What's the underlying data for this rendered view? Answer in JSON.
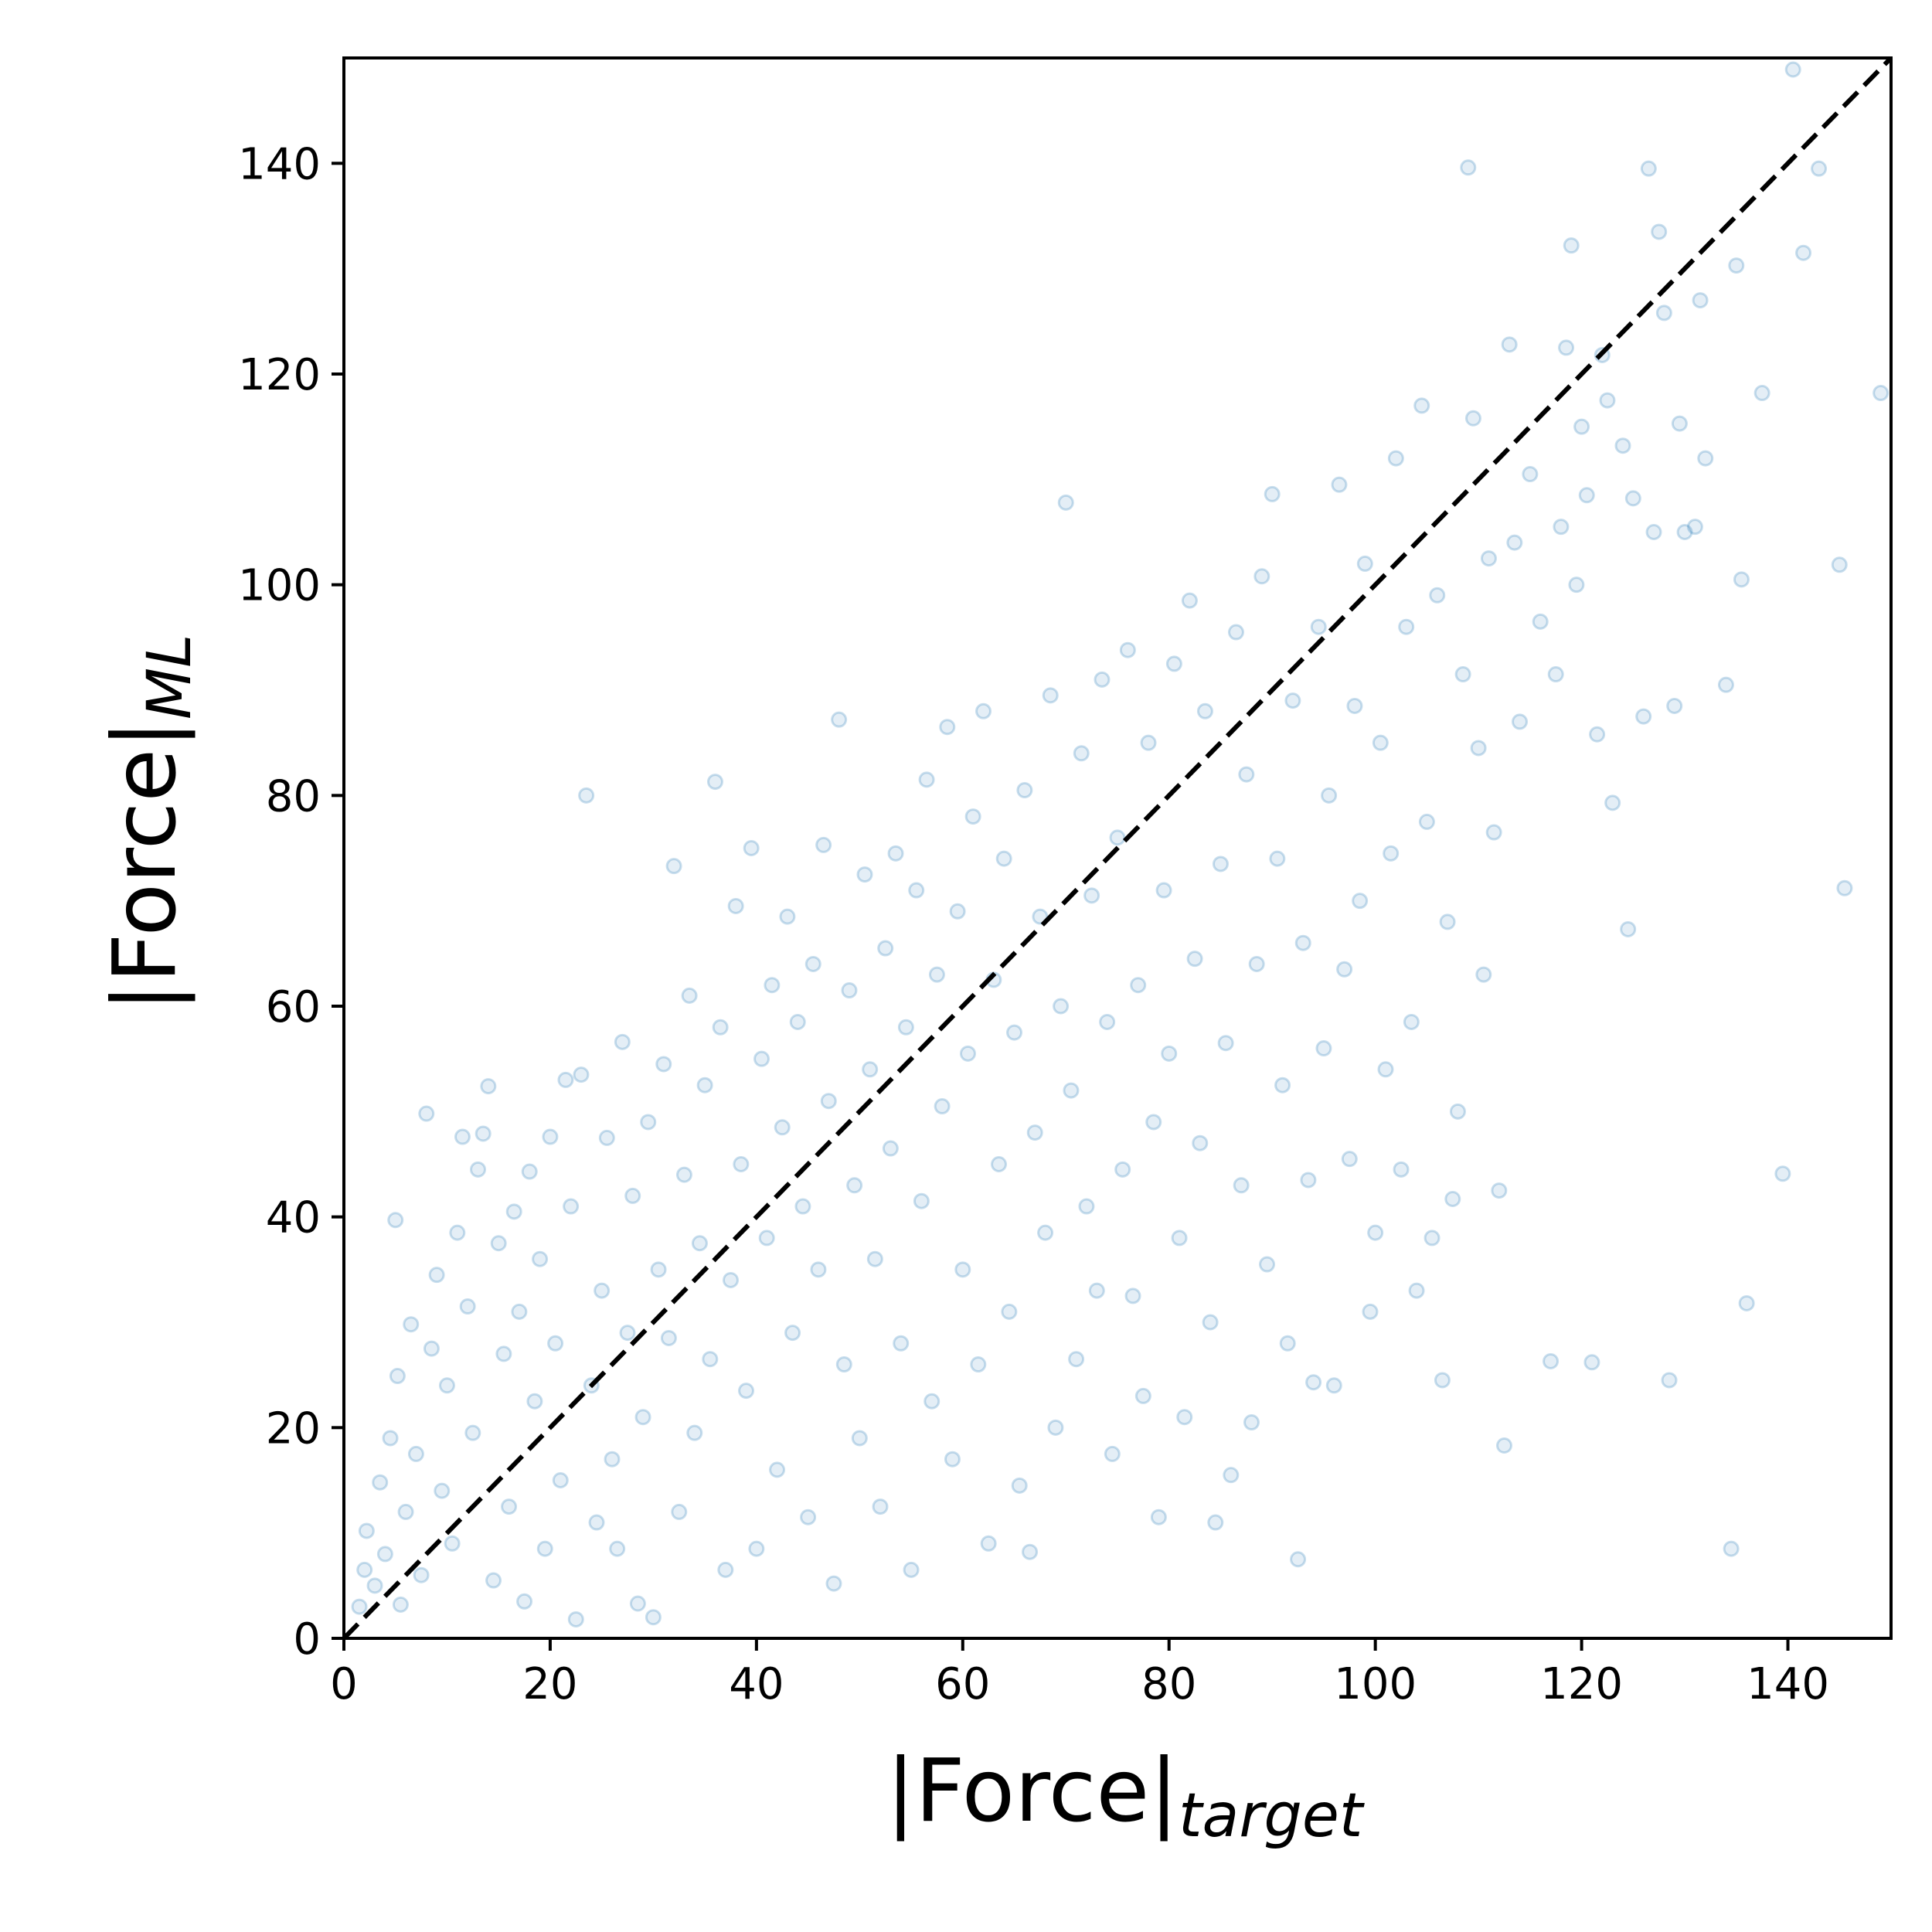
{
  "chart_data": {
    "type": "scatter",
    "title": "",
    "xlabel": {
      "main": "|Force|",
      "subscript": "target"
    },
    "ylabel": {
      "main": "|Force|",
      "subscript": "ML"
    },
    "xlim": [
      0,
      150
    ],
    "ylim": [
      0,
      150
    ],
    "xticks": [
      0,
      20,
      40,
      60,
      80,
      100,
      120,
      140
    ],
    "yticks": [
      0,
      20,
      40,
      60,
      80,
      100,
      120,
      140
    ],
    "xtick_labels": [
      "0",
      "20",
      "40",
      "60",
      "80",
      "100",
      "120",
      "140"
    ],
    "ytick_labels": [
      "0",
      "20",
      "40",
      "60",
      "80",
      "100",
      "120",
      "140"
    ],
    "grid": false,
    "legend": "none",
    "reference_line": {
      "style": "dashed",
      "color": "#000000",
      "from": [
        0,
        0
      ],
      "to": [
        150,
        150
      ]
    },
    "series": [
      {
        "marker": "hollow-circle",
        "color": "#1f77b4",
        "alpha": 0.15,
        "points": [
          [
            1.5,
            3.0
          ],
          [
            2.0,
            6.5
          ],
          [
            2.2,
            10.2
          ],
          [
            3.0,
            5.0
          ],
          [
            3.5,
            14.8
          ],
          [
            4.0,
            8.0
          ],
          [
            4.5,
            19.0
          ],
          [
            5.0,
            39.7
          ],
          [
            5.2,
            24.9
          ],
          [
            5.5,
            3.2
          ],
          [
            6.0,
            12.0
          ],
          [
            6.5,
            29.8
          ],
          [
            7.0,
            17.5
          ],
          [
            7.5,
            6.0
          ],
          [
            8.0,
            49.8
          ],
          [
            8.5,
            27.5
          ],
          [
            9.0,
            34.5
          ],
          [
            9.5,
            14.0
          ],
          [
            10.0,
            24.0
          ],
          [
            10.5,
            9.0
          ],
          [
            11.0,
            38.5
          ],
          [
            11.5,
            47.6
          ],
          [
            12.0,
            31.5
          ],
          [
            12.5,
            19.5
          ],
          [
            13.0,
            44.5
          ],
          [
            13.5,
            47.9
          ],
          [
            14.0,
            52.4
          ],
          [
            14.5,
            5.5
          ],
          [
            15.0,
            37.5
          ],
          [
            15.5,
            27.0
          ],
          [
            16.0,
            12.5
          ],
          [
            16.5,
            40.5
          ],
          [
            17.0,
            31.0
          ],
          [
            17.5,
            3.5
          ],
          [
            18.0,
            44.3
          ],
          [
            18.5,
            22.5
          ],
          [
            19.0,
            36.0
          ],
          [
            19.5,
            8.5
          ],
          [
            20.0,
            47.6
          ],
          [
            20.5,
            28.0
          ],
          [
            21.0,
            15.0
          ],
          [
            21.5,
            53.0
          ],
          [
            22.0,
            41.0
          ],
          [
            22.5,
            1.8
          ],
          [
            23.0,
            53.5
          ],
          [
            23.5,
            80.0
          ],
          [
            24.0,
            24.0
          ],
          [
            24.5,
            11.0
          ],
          [
            25.0,
            33.0
          ],
          [
            25.5,
            47.5
          ],
          [
            26.0,
            17.0
          ],
          [
            26.5,
            8.5
          ],
          [
            27.0,
            56.6
          ],
          [
            27.5,
            29.0
          ],
          [
            28.0,
            42.0
          ],
          [
            28.5,
            3.3
          ],
          [
            29.0,
            21.0
          ],
          [
            29.5,
            49.0
          ],
          [
            30.0,
            2.0
          ],
          [
            30.5,
            35.0
          ],
          [
            31.0,
            54.5
          ],
          [
            31.5,
            28.5
          ],
          [
            32.0,
            73.3
          ],
          [
            32.5,
            12.0
          ],
          [
            33.0,
            44.0
          ],
          [
            33.5,
            61.0
          ],
          [
            34.0,
            19.5
          ],
          [
            34.5,
            37.5
          ],
          [
            35.0,
            52.5
          ],
          [
            35.5,
            26.5
          ],
          [
            36.0,
            81.3
          ],
          [
            36.5,
            58.0
          ],
          [
            37.0,
            6.5
          ],
          [
            37.5,
            34.0
          ],
          [
            38.0,
            69.5
          ],
          [
            38.5,
            45.0
          ],
          [
            39.0,
            23.5
          ],
          [
            39.5,
            75.0
          ],
          [
            40.0,
            8.5
          ],
          [
            40.5,
            55.0
          ],
          [
            41.0,
            38.0
          ],
          [
            41.5,
            62.0
          ],
          [
            42.0,
            16.0
          ],
          [
            42.5,
            48.5
          ],
          [
            43.0,
            68.5
          ],
          [
            43.5,
            29.0
          ],
          [
            44.0,
            58.5
          ],
          [
            44.5,
            41.0
          ],
          [
            45.0,
            11.5
          ],
          [
            45.5,
            64.0
          ],
          [
            46.0,
            35.0
          ],
          [
            46.5,
            75.3
          ],
          [
            47.0,
            51.0
          ],
          [
            47.5,
            5.2
          ],
          [
            48.0,
            87.2
          ],
          [
            48.5,
            26.0
          ],
          [
            49.0,
            61.5
          ],
          [
            49.5,
            43.0
          ],
          [
            50.0,
            19.0
          ],
          [
            50.5,
            72.5
          ],
          [
            51.0,
            54.0
          ],
          [
            51.5,
            36.0
          ],
          [
            52.0,
            12.5
          ],
          [
            52.5,
            65.5
          ],
          [
            53.0,
            46.5
          ],
          [
            53.5,
            74.5
          ],
          [
            54.0,
            28.0
          ],
          [
            54.5,
            58.0
          ],
          [
            55.0,
            6.5
          ],
          [
            55.5,
            71.0
          ],
          [
            56.0,
            41.5
          ],
          [
            56.5,
            81.5
          ],
          [
            57.0,
            22.5
          ],
          [
            57.5,
            63.0
          ],
          [
            58.0,
            50.5
          ],
          [
            58.5,
            86.5
          ],
          [
            59.0,
            17.0
          ],
          [
            59.5,
            69.0
          ],
          [
            60.0,
            35.0
          ],
          [
            60.5,
            55.5
          ],
          [
            61.0,
            78.0
          ],
          [
            61.5,
            26.0
          ],
          [
            62.0,
            88.0
          ],
          [
            62.5,
            9.0
          ],
          [
            63.0,
            62.5
          ],
          [
            63.5,
            45.0
          ],
          [
            64.0,
            74.0
          ],
          [
            64.5,
            31.0
          ],
          [
            65.0,
            57.5
          ],
          [
            65.5,
            14.5
          ],
          [
            66.0,
            80.5
          ],
          [
            66.5,
            8.2
          ],
          [
            67.0,
            48.0
          ],
          [
            67.5,
            68.5
          ],
          [
            68.0,
            38.5
          ],
          [
            68.5,
            89.5
          ],
          [
            69.0,
            20.0
          ],
          [
            69.5,
            60.0
          ],
          [
            70.0,
            107.8
          ],
          [
            70.5,
            52.0
          ],
          [
            71.0,
            26.5
          ],
          [
            71.5,
            84.0
          ],
          [
            72.0,
            41.0
          ],
          [
            72.5,
            70.5
          ],
          [
            73.0,
            33.0
          ],
          [
            73.5,
            91.0
          ],
          [
            74.0,
            58.5
          ],
          [
            74.5,
            17.5
          ],
          [
            75.0,
            76.0
          ],
          [
            75.5,
            44.5
          ],
          [
            76.0,
            93.8
          ],
          [
            76.5,
            32.5
          ],
          [
            77.0,
            62.0
          ],
          [
            77.5,
            23.0
          ],
          [
            78.0,
            85.0
          ],
          [
            78.5,
            49.0
          ],
          [
            79.0,
            11.5
          ],
          [
            79.5,
            71.0
          ],
          [
            80.0,
            55.5
          ],
          [
            80.5,
            92.5
          ],
          [
            81.0,
            38.0
          ],
          [
            81.5,
            21.0
          ],
          [
            82.0,
            98.5
          ],
          [
            82.5,
            64.5
          ],
          [
            83.0,
            47.0
          ],
          [
            83.5,
            88.0
          ],
          [
            84.0,
            30.0
          ],
          [
            84.5,
            11.0
          ],
          [
            85.0,
            73.5
          ],
          [
            85.5,
            56.5
          ],
          [
            86.0,
            15.5
          ],
          [
            86.5,
            95.5
          ],
          [
            87.0,
            43.0
          ],
          [
            87.5,
            82.0
          ],
          [
            88.0,
            20.5
          ],
          [
            88.5,
            64.0
          ],
          [
            89.0,
            100.8
          ],
          [
            89.5,
            35.5
          ],
          [
            90.0,
            108.6
          ],
          [
            90.5,
            74.0
          ],
          [
            91.0,
            52.5
          ],
          [
            91.5,
            28.0
          ],
          [
            92.0,
            89.0
          ],
          [
            92.5,
            7.5
          ],
          [
            93.0,
            66.0
          ],
          [
            93.5,
            43.5
          ],
          [
            94.0,
            24.3
          ],
          [
            94.5,
            96.0
          ],
          [
            95.0,
            56.0
          ],
          [
            95.5,
            80.0
          ],
          [
            96.0,
            24.0
          ],
          [
            96.5,
            109.5
          ],
          [
            97.0,
            63.5
          ],
          [
            97.5,
            45.5
          ],
          [
            98.0,
            88.5
          ],
          [
            98.5,
            70.0
          ],
          [
            99.0,
            102.0
          ],
          [
            99.5,
            31.0
          ],
          [
            100.0,
            38.5
          ],
          [
            100.5,
            85.0
          ],
          [
            101.0,
            54.0
          ],
          [
            101.5,
            74.5
          ],
          [
            102.0,
            112.0
          ],
          [
            102.5,
            44.5
          ],
          [
            103.0,
            96.0
          ],
          [
            103.5,
            58.5
          ],
          [
            104.0,
            33.0
          ],
          [
            104.5,
            117.0
          ],
          [
            105.0,
            77.5
          ],
          [
            105.5,
            38.0
          ],
          [
            106.0,
            99.0
          ],
          [
            106.5,
            24.5
          ],
          [
            107.0,
            68.0
          ],
          [
            107.5,
            41.7
          ],
          [
            108.0,
            50.0
          ],
          [
            108.5,
            91.5
          ],
          [
            109.0,
            139.6
          ],
          [
            109.5,
            115.8
          ],
          [
            110.0,
            84.5
          ],
          [
            110.5,
            63.0
          ],
          [
            111.0,
            102.5
          ],
          [
            111.5,
            76.5
          ],
          [
            112.0,
            42.5
          ],
          [
            112.5,
            18.3
          ],
          [
            113.0,
            122.8
          ],
          [
            113.5,
            104.0
          ],
          [
            114.0,
            87.0
          ],
          [
            115.0,
            110.5
          ],
          [
            116.0,
            96.5
          ],
          [
            117.0,
            26.3
          ],
          [
            117.5,
            91.5
          ],
          [
            118.0,
            105.5
          ],
          [
            118.5,
            122.5
          ],
          [
            119.0,
            132.2
          ],
          [
            119.5,
            100.0
          ],
          [
            120.0,
            115.0
          ],
          [
            120.5,
            108.5
          ],
          [
            121.0,
            26.2
          ],
          [
            121.5,
            85.8
          ],
          [
            122.0,
            121.8
          ],
          [
            122.5,
            117.5
          ],
          [
            123.0,
            79.3
          ],
          [
            124.0,
            113.2
          ],
          [
            124.5,
            67.3
          ],
          [
            125.0,
            108.2
          ],
          [
            126.0,
            87.5
          ],
          [
            126.5,
            139.5
          ],
          [
            127.0,
            105.0
          ],
          [
            127.5,
            133.5
          ],
          [
            128.0,
            125.8
          ],
          [
            128.5,
            24.5
          ],
          [
            129.0,
            88.5
          ],
          [
            129.5,
            115.3
          ],
          [
            130.0,
            105.0
          ],
          [
            131.0,
            105.5
          ],
          [
            131.5,
            127.0
          ],
          [
            132.0,
            112.0
          ],
          [
            134.0,
            90.5
          ],
          [
            134.5,
            8.5
          ],
          [
            135.0,
            130.3
          ],
          [
            135.5,
            100.5
          ],
          [
            136.0,
            31.8
          ],
          [
            137.5,
            118.2
          ],
          [
            139.5,
            44.1
          ],
          [
            140.5,
            148.9
          ],
          [
            141.5,
            131.5
          ],
          [
            143.0,
            139.5
          ],
          [
            145.0,
            101.9
          ],
          [
            145.5,
            71.2
          ],
          [
            149.0,
            118.2
          ]
        ]
      }
    ]
  }
}
